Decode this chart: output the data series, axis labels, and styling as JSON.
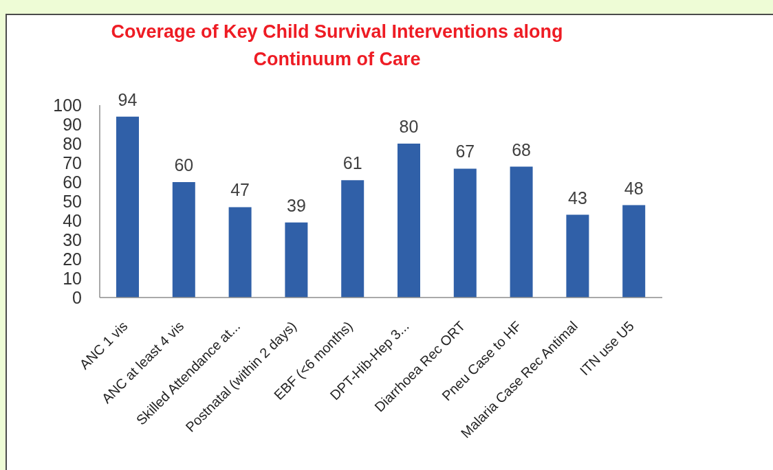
{
  "chart_data": {
    "type": "bar",
    "title": "Coverage of Key Child Survival Interventions along Continuum of Care",
    "categories": [
      "ANC 1 vis",
      "ANC at least 4 vis",
      "Skilled Attendance at...",
      "Postnatal (within 2 days)",
      "EBF (<6 months)",
      "DPT-Hib-Hep 3...",
      "Diarrhoea Rec ORT",
      "Pneu Case to HF",
      "Malaria Case Rec Antimal",
      "ITN use U5"
    ],
    "values": [
      94,
      60,
      47,
      39,
      61,
      80,
      67,
      68,
      43,
      48
    ],
    "color": "#3060a8",
    "ylim": [
      0,
      100
    ],
    "yticks": [
      0,
      10,
      20,
      30,
      40,
      50,
      60,
      70,
      80,
      90,
      100
    ],
    "data_labels": true
  }
}
